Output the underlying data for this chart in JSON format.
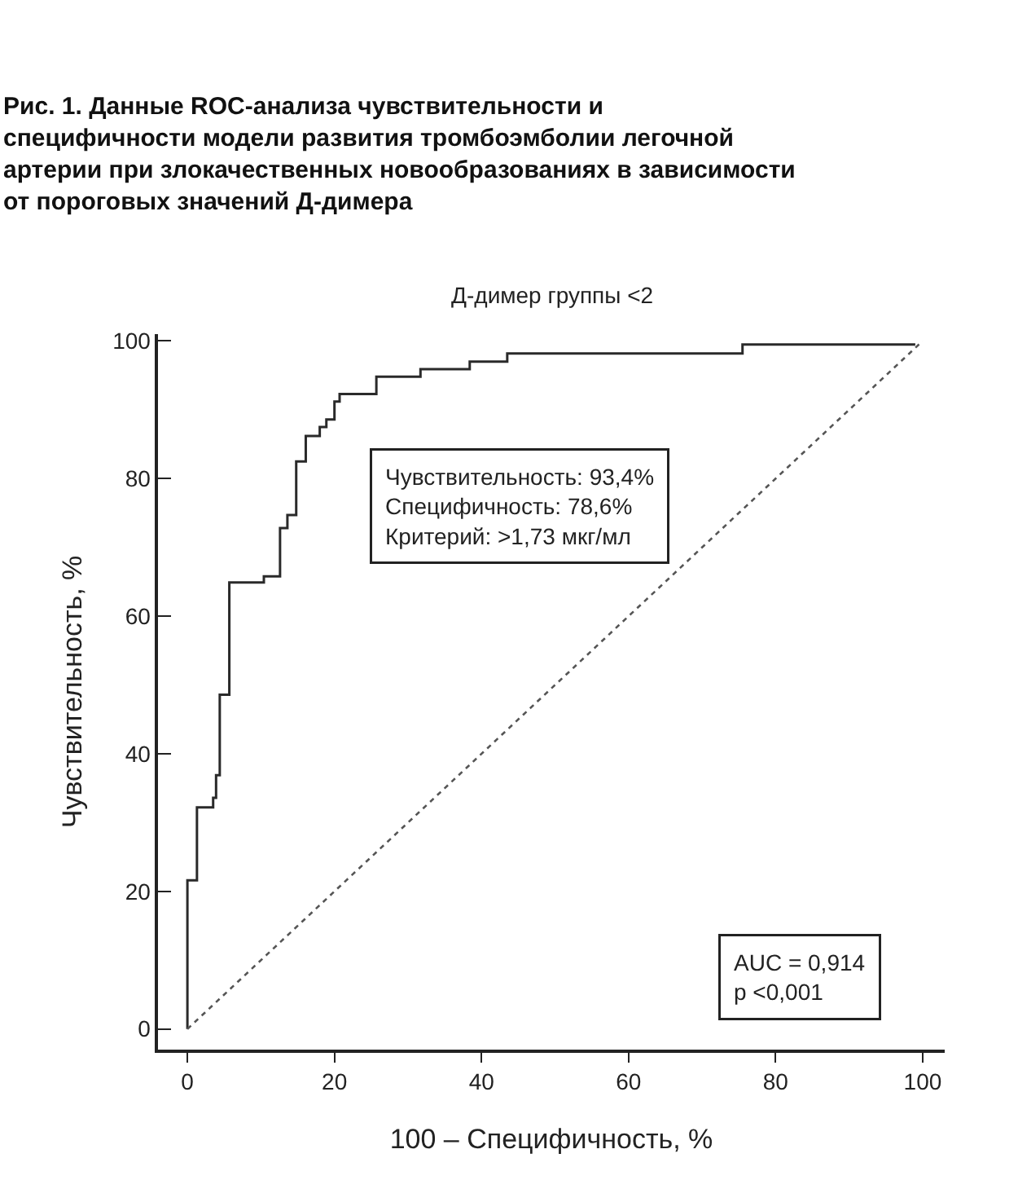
{
  "chart_data": {
    "type": "step",
    "title": "Рис. 1. Данные ROC-анализа чувствительности и специфичности модели развития тромбоэмболии легочной артерии при злокачественных новообразованиях в зависимости от пороговых значений Д-димера",
    "subtitle": "Д-димер группы <2",
    "xlabel": "100 – Специфичность, %",
    "ylabel": "Чувствительность, %",
    "series": [
      {
        "color": "#2a2a2a",
        "line_style": "solid",
        "x": [
          0,
          0,
          1.3,
          3.5,
          3.9,
          4.4,
          5.7,
          10.4,
          12.6,
          13.6,
          14.8,
          16.1,
          18.0,
          18.9,
          20.0,
          20.7,
          25.7,
          31.7,
          38.4,
          43.5,
          75.5,
          99
        ],
        "values": [
          0,
          21.6,
          32.2,
          33.6,
          36.9,
          48.6,
          64.9,
          65.8,
          72.8,
          74.7,
          82.5,
          86.2,
          87.5,
          88.6,
          91.2,
          92.3,
          94.8,
          95.9,
          97.0,
          98.2,
          99.5,
          99.5
        ]
      },
      {
        "type": "line",
        "color": "#555555",
        "line_style": "dotted",
        "x": [
          0,
          100
        ],
        "values": [
          0,
          100
        ]
      }
    ],
    "xlim": [
      -4,
      103
    ],
    "ylim": [
      -3,
      101
    ],
    "xticks": [
      0,
      20,
      40,
      60,
      80,
      100
    ],
    "yticks": [
      0,
      20,
      40,
      60,
      80,
      100
    ],
    "legend": false,
    "annotations": [
      "Чувствительность: 93,4%\nСпецифичность: 78,6%\nКритерий: >1,73 мкг/мл",
      "AUC = 0,914\np <0,001"
    ]
  }
}
